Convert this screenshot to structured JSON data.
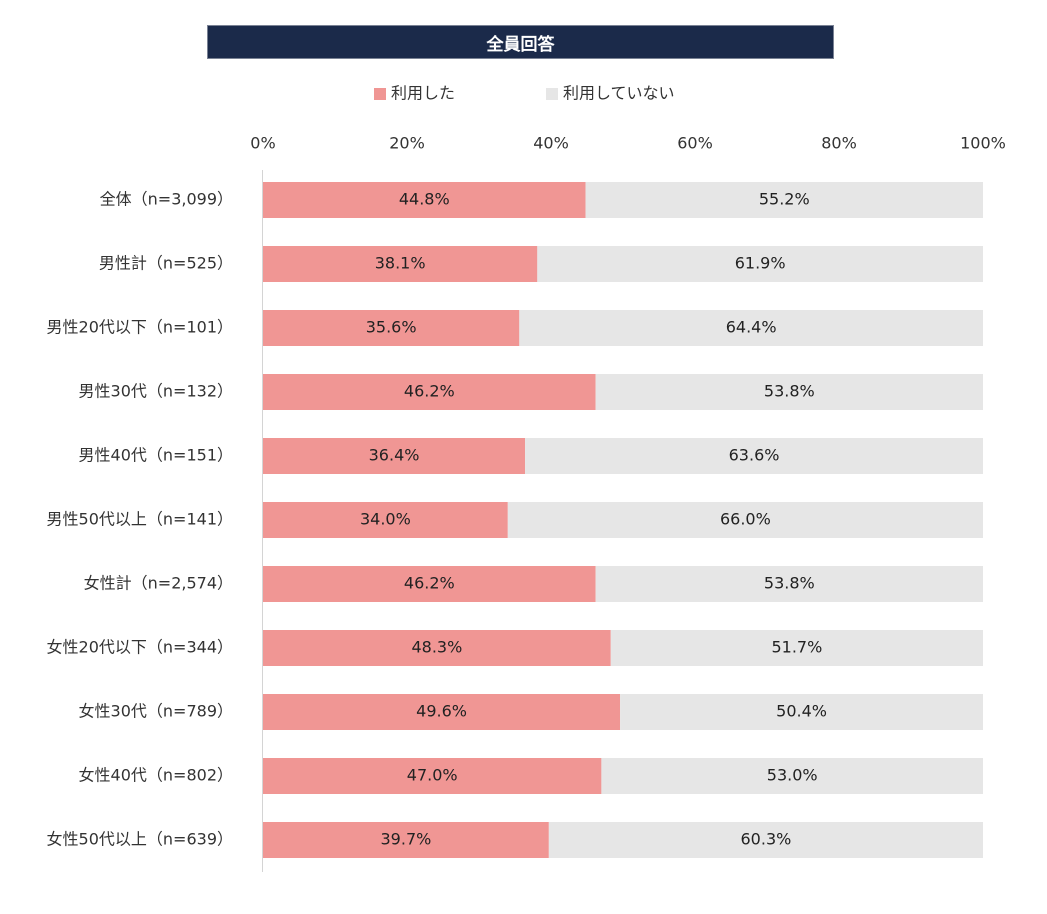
{
  "colors": {
    "title_bg": "#1b2a4a",
    "used": "#f09694",
    "not_used": "#e6e6e6",
    "axis_line": "#d4d4d4"
  },
  "chart_data": {
    "type": "bar",
    "orientation": "horizontal",
    "stacked": "100%",
    "title": "全員回答",
    "legend_position": "top",
    "grid": false,
    "xlim": [
      0,
      100
    ],
    "x_ticks": [
      "0%",
      "20%",
      "40%",
      "60%",
      "80%",
      "100%"
    ],
    "categories": [
      "全体（n=3,099）",
      "男性計（n=525）",
      "男性20代以下（n=101）",
      "男性30代（n=132）",
      "男性40代（n=151）",
      "男性50代以上（n=141）",
      "女性計（n=2,574）",
      "女性20代以下（n=344）",
      "女性30代（n=789）",
      "女性40代（n=802）",
      "女性50代以上（n=639）"
    ],
    "series": [
      {
        "name": "利用した",
        "color": "#f09694",
        "values": [
          44.8,
          38.1,
          35.6,
          46.2,
          36.4,
          34.0,
          46.2,
          48.3,
          49.6,
          47.0,
          39.7
        ],
        "labels": [
          "44.8%",
          "38.1%",
          "35.6%",
          "46.2%",
          "36.4%",
          "34.0%",
          "46.2%",
          "48.3%",
          "49.6%",
          "47.0%",
          "39.7%"
        ]
      },
      {
        "name": "利用していない",
        "color": "#e6e6e6",
        "values": [
          55.2,
          61.9,
          64.4,
          53.8,
          63.6,
          66.0,
          53.8,
          51.7,
          50.4,
          53.0,
          60.3
        ],
        "labels": [
          "55.2%",
          "61.9%",
          "64.4%",
          "53.8%",
          "63.6%",
          "66.0%",
          "53.8%",
          "51.7%",
          "50.4%",
          "53.0%",
          "60.3%"
        ]
      }
    ]
  }
}
